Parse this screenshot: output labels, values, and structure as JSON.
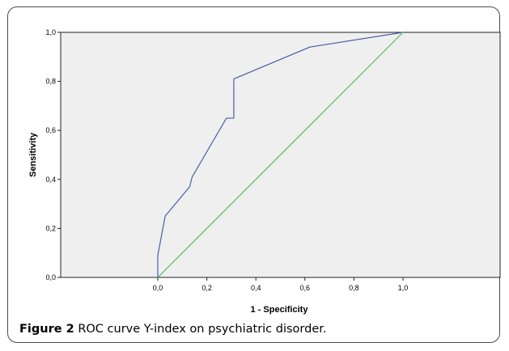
{
  "chart_data": {
    "type": "line",
    "xlabel": "1 - Specificity",
    "ylabel": "Sensitivity",
    "xlim": [
      0,
      1
    ],
    "ylim": [
      0,
      1
    ],
    "x_ticks": [
      "0,0",
      "0,2",
      "0,4",
      "0,6",
      "0,8",
      "1,0"
    ],
    "y_ticks": [
      "0,0",
      "0,2",
      "0,4",
      "0,6",
      "0,8",
      "1,0"
    ],
    "grid": false,
    "plot_background": "#efefef",
    "series": [
      {
        "color": "#4b5fa6",
        "points": [
          [
            0.0,
            0.0
          ],
          [
            0.0,
            0.09
          ],
          [
            0.03,
            0.25
          ],
          [
            0.13,
            0.37
          ],
          [
            0.14,
            0.41
          ],
          [
            0.28,
            0.65
          ],
          [
            0.31,
            0.65
          ],
          [
            0.31,
            0.81
          ],
          [
            0.62,
            0.94
          ],
          [
            1.0,
            1.0
          ]
        ]
      },
      {
        "color": "#5cb85c",
        "points": [
          [
            0.0,
            0.0
          ],
          [
            1.0,
            1.0
          ]
        ]
      }
    ]
  },
  "caption": {
    "label": "Figure 2",
    "text": "ROC curve Y-index on psychiatric disorder",
    "period": "."
  }
}
